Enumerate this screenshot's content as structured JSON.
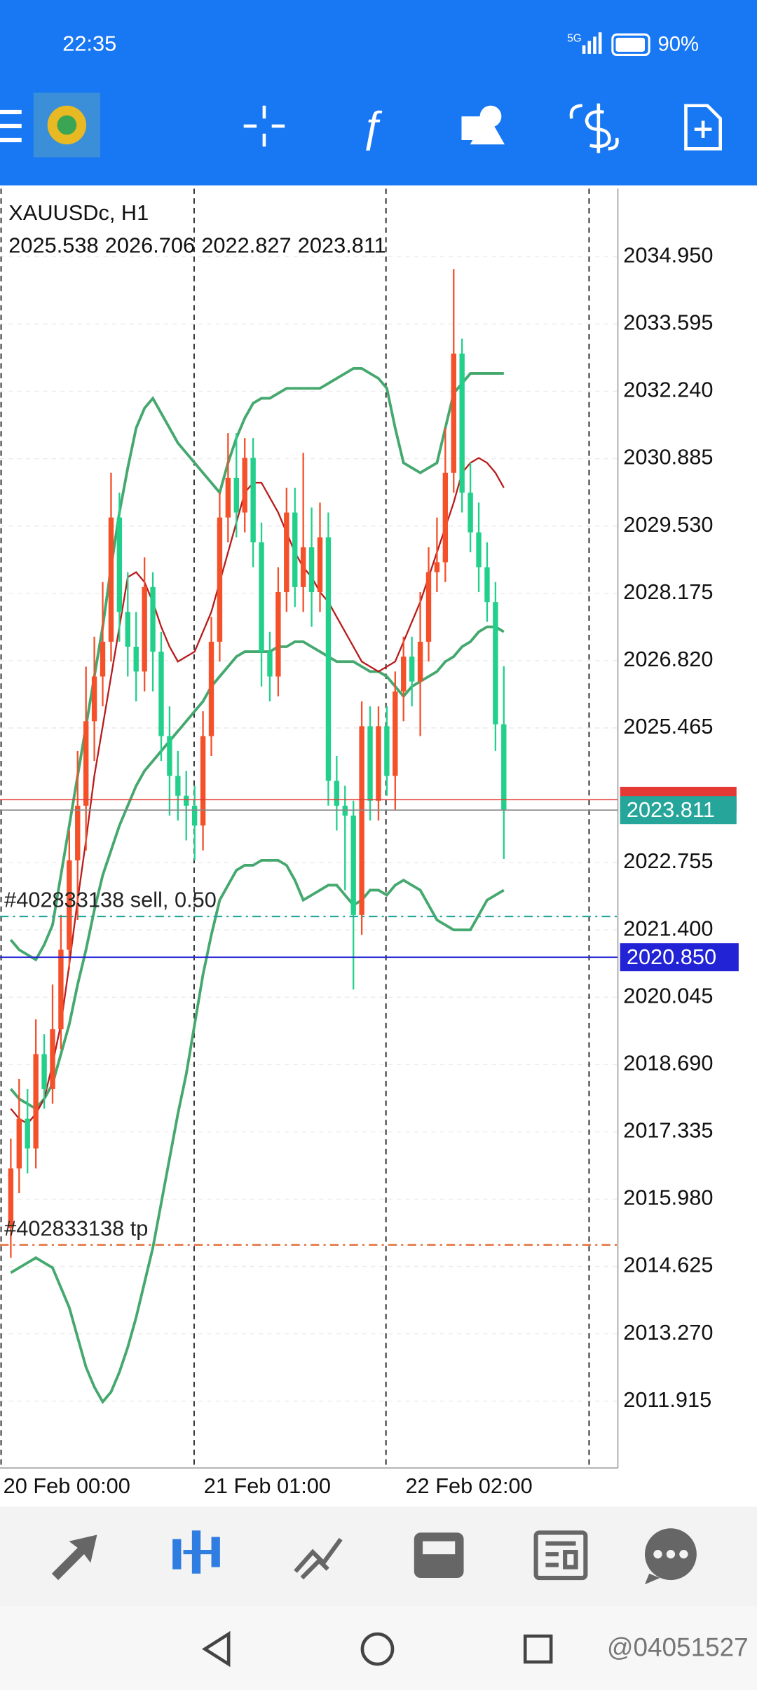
{
  "status_bar": {
    "time": "22:35",
    "network": "5G",
    "battery": "90%"
  },
  "chart_data": {
    "type": "candlestick",
    "title": "XAUUSDc, H1",
    "open": [
      2015.4,
      2016.6,
      2017.6,
      2017.0,
      2018.9,
      2018.2,
      2019.4,
      2021.0,
      2022.8,
      2023.9,
      2025.6,
      2026.5,
      2027.2,
      2029.7,
      2027.8,
      2027.1,
      2026.6,
      2028.3,
      2027.0,
      2025.3,
      2024.5,
      2024.1,
      2023.9,
      2023.5,
      2025.3,
      2027.2,
      2029.7,
      2030.5,
      2029.8,
      2030.9,
      2029.2,
      2027.0,
      2026.5,
      2028.2,
      2029.8,
      2028.3,
      2029.1,
      2028.2,
      2029.3,
      2024.4,
      2023.9,
      2023.7,
      2021.7,
      2025.5,
      2024.0,
      2025.5,
      2024.5,
      2026.2,
      2026.9,
      2026.4,
      2027.2,
      2028.6,
      2028.8,
      2030.6,
      2033.0,
      2030.2,
      2029.4,
      2028.7,
      2028.0,
      2025.538
    ],
    "high": [
      2017.2,
      2018.4,
      2018.2,
      2019.6,
      2019.3,
      2020.3,
      2021.7,
      2023.4,
      2025.0,
      2026.7,
      2027.3,
      2028.4,
      2030.6,
      2030.2,
      2028.6,
      2027.8,
      2028.9,
      2028.6,
      2027.4,
      2025.9,
      2025.0,
      2024.6,
      2024.3,
      2025.8,
      2027.7,
      2030.2,
      2031.4,
      2031.4,
      2031.3,
      2031.3,
      2029.6,
      2027.4,
      2028.7,
      2030.3,
      2030.3,
      2031.0,
      2029.9,
      2030.0,
      2029.8,
      2024.9,
      2024.3,
      2024.0,
      2026.0,
      2025.9,
      2025.9,
      2025.9,
      2026.6,
      2027.3,
      2027.3,
      2028.2,
      2029.1,
      2029.7,
      2031.5,
      2034.7,
      2033.3,
      2030.8,
      2030.0,
      2029.2,
      2028.4,
      2026.706
    ],
    "low": [
      2014.8,
      2016.1,
      2016.5,
      2016.6,
      2017.8,
      2017.9,
      2019.0,
      2020.6,
      2021.6,
      2023.0,
      2024.8,
      2025.9,
      2026.8,
      2027.2,
      2026.5,
      2026.0,
      2026.2,
      2026.2,
      2024.8,
      2023.7,
      2023.6,
      2023.2,
      2022.8,
      2023.0,
      2024.9,
      2026.8,
      2029.2,
      2029.3,
      2029.4,
      2028.7,
      2026.3,
      2026.0,
      2026.1,
      2027.8,
      2027.9,
      2027.8,
      2027.5,
      2027.8,
      2023.9,
      2023.4,
      2022.2,
      2020.2,
      2021.3,
      2023.6,
      2023.6,
      2024.1,
      2023.8,
      2025.6,
      2025.9,
      2025.3,
      2026.8,
      2028.2,
      2028.4,
      2030.2,
      2029.8,
      2029.0,
      2028.2,
      2027.6,
      2025.0,
      2022.827
    ],
    "close": [
      2016.6,
      2017.6,
      2017.0,
      2018.9,
      2018.2,
      2019.4,
      2021.0,
      2022.8,
      2023.9,
      2025.6,
      2026.5,
      2027.2,
      2029.7,
      2027.8,
      2027.1,
      2026.6,
      2028.3,
      2027.0,
      2025.3,
      2024.5,
      2024.1,
      2023.9,
      2023.5,
      2025.3,
      2027.2,
      2029.7,
      2030.5,
      2029.8,
      2030.9,
      2029.2,
      2027.0,
      2026.5,
      2028.2,
      2029.8,
      2028.3,
      2029.1,
      2028.2,
      2029.3,
      2024.4,
      2023.9,
      2023.7,
      2021.7,
      2025.5,
      2024.0,
      2025.5,
      2024.5,
      2026.2,
      2026.9,
      2026.4,
      2027.2,
      2028.6,
      2028.8,
      2030.6,
      2033.0,
      2030.2,
      2029.4,
      2028.7,
      2028.0,
      2025.538,
      2023.811
    ],
    "up_color": "#f4502a",
    "down_color": "#22d08b",
    "lines": [
      {
        "color": "#45a86e",
        "values": [
          2021.2,
          2021.0,
          2020.9,
          2020.8,
          2021.1,
          2021.5,
          2022.5,
          2023.5,
          2024.5,
          2025.5,
          2026.5,
          2027.5,
          2028.7,
          2029.8,
          2030.7,
          2031.5,
          2031.9,
          2032.1,
          2031.8,
          2031.5,
          2031.2,
          2031.0,
          2030.8,
          2030.6,
          2030.4,
          2030.2,
          2030.8,
          2031.3,
          2031.7,
          2032.0,
          2032.1,
          2032.1,
          2032.2,
          2032.3,
          2032.3,
          2032.3,
          2032.3,
          2032.3,
          2032.4,
          2032.5,
          2032.6,
          2032.7,
          2032.7,
          2032.6,
          2032.5,
          2032.3,
          2031.5,
          2030.8,
          2030.7,
          2030.6,
          2030.7,
          2030.8,
          2031.5,
          2032.2,
          2032.4,
          2032.6,
          2032.6,
          2032.6,
          2032.6,
          2032.6
        ]
      },
      {
        "color": "#45a86e",
        "values": [
          2018.2,
          2018.0,
          2017.9,
          2017.8,
          2018.0,
          2018.3,
          2018.9,
          2019.5,
          2020.3,
          2021.0,
          2021.8,
          2022.5,
          2023.0,
          2023.5,
          2023.9,
          2024.3,
          2024.6,
          2024.8,
          2025.0,
          2025.2,
          2025.4,
          2025.6,
          2025.8,
          2026.0,
          2026.3,
          2026.5,
          2026.7,
          2026.9,
          2027.0,
          2027.0,
          2027.0,
          2027.0,
          2027.1,
          2027.1,
          2027.2,
          2027.2,
          2027.1,
          2027.0,
          2026.9,
          2026.8,
          2026.8,
          2026.8,
          2026.7,
          2026.6,
          2026.6,
          2026.5,
          2026.3,
          2026.1,
          2026.3,
          2026.4,
          2026.5,
          2026.6,
          2026.8,
          2026.9,
          2027.1,
          2027.2,
          2027.4,
          2027.5,
          2027.5,
          2027.4
        ]
      },
      {
        "color": "#45a86e",
        "values": [
          2014.5,
          2014.6,
          2014.7,
          2014.8,
          2014.7,
          2014.6,
          2014.2,
          2013.8,
          2013.2,
          2012.6,
          2012.2,
          2011.9,
          2012.1,
          2012.5,
          2013.0,
          2013.6,
          2014.3,
          2015.0,
          2015.9,
          2016.8,
          2017.7,
          2018.5,
          2019.5,
          2020.5,
          2021.3,
          2022.0,
          2022.3,
          2022.6,
          2022.7,
          2022.7,
          2022.8,
          2022.8,
          2022.8,
          2022.7,
          2022.4,
          2022.0,
          2022.1,
          2022.2,
          2022.3,
          2022.3,
          2022.1,
          2021.9,
          2022.0,
          2022.2,
          2022.2,
          2022.1,
          2022.3,
          2022.4,
          2022.3,
          2022.2,
          2021.9,
          2021.6,
          2021.5,
          2021.4,
          2021.4,
          2021.4,
          2021.7,
          2022.0,
          2022.1,
          2022.2
        ]
      },
      {
        "color": "#b71c1c",
        "values": [
          2017.8,
          2017.6,
          2017.5,
          2017.7,
          2018.0,
          2018.7,
          2019.5,
          2020.7,
          2022.0,
          2023.2,
          2024.5,
          2025.5,
          2026.5,
          2027.5,
          2028.5,
          2028.6,
          2028.4,
          2028.0,
          2027.5,
          2027.1,
          2026.8,
          2026.9,
          2027.0,
          2027.4,
          2027.8,
          2028.4,
          2029.0,
          2029.6,
          2030.2,
          2030.4,
          2030.4,
          2030.1,
          2029.8,
          2029.4,
          2029.0,
          2028.7,
          2028.5,
          2028.2,
          2028.0,
          2027.7,
          2027.4,
          2027.1,
          2026.8,
          2026.7,
          2026.6,
          2026.7,
          2026.8,
          2027.2,
          2027.6,
          2028.0,
          2028.5,
          2029.0,
          2029.5,
          2030.0,
          2030.6,
          2030.8,
          2030.9,
          2030.8,
          2030.6,
          2030.3
        ]
      }
    ],
    "xlim": [
      -1.29,
      72.65
    ],
    "ylim": [
      2010.57,
      2036.32
    ],
    "yticks": [
      {
        "value": 2034.95,
        "label": "2034.950"
      },
      2033.595,
      {
        "value": 2032.24,
        "label": "2032.240"
      },
      2030.885,
      {
        "value": 2029.53,
        "label": "2029.530"
      },
      2028.175,
      {
        "value": 2026.82,
        "label": "2026.820"
      },
      2025.465,
      2022.755,
      {
        "value": 2021.4,
        "label": "2021.400"
      },
      2020.045,
      {
        "value": 2018.69,
        "label": "2018.690"
      },
      2017.335,
      {
        "value": 2015.98,
        "label": "2015.980"
      },
      2014.625,
      {
        "value": 2013.27,
        "label": "2013.270"
      },
      2011.915
    ],
    "xticks": [
      {
        "value": -1.03,
        "label": "20 Feb 00:00"
      },
      {
        "value": 22.97,
        "label": "21 Feb 01:00"
      },
      {
        "value": 47.1,
        "label": "22 Feb 02:00"
      }
    ],
    "separators": [
      21.94,
      44.9,
      69.2
    ],
    "grid": true,
    "bid_color": "#26a69a",
    "ask_line": {
      "value": 2024.02,
      "color": "#e53935"
    },
    "price_line": {
      "value": 2020.85,
      "label": "2020.850",
      "color": "#2323d6"
    },
    "orders": [
      {
        "label": "#402833138 sell, 0.50",
        "value": 2021.67,
        "color": "#26a69a"
      },
      {
        "label": "#402833138 tp",
        "value": 2015.06,
        "color": "#e0662d"
      }
    ]
  },
  "watermark": "@04051527"
}
